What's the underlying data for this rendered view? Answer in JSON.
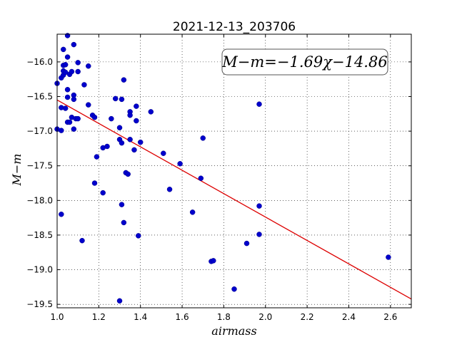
{
  "chart_data": {
    "type": "scatter",
    "title": "2021-12-13_203706",
    "xlabel": "airmass",
    "ylabel": "M−m",
    "xlim": [
      1.0,
      2.7
    ],
    "ylim": [
      -19.55,
      -15.6
    ],
    "x_ticks": [
      "1.0",
      "1.2",
      "1.4",
      "1.6",
      "1.8",
      "2.0",
      "2.2",
      "2.4",
      "2.6"
    ],
    "y_ticks": [
      "−16.0",
      "−16.5",
      "−17.0",
      "−17.5",
      "−18.0",
      "−18.5",
      "−19.0",
      "−19.5"
    ],
    "grid": true,
    "annotation": "M−m=−1.69χ−14.86",
    "fit": {
      "slope": -1.69,
      "intercept": -14.86,
      "color": "#dd0000"
    },
    "point_color": "#0000cc",
    "points": [
      [
        1.0,
        -16.31
      ],
      [
        1.0,
        -16.97
      ],
      [
        1.02,
        -16.23
      ],
      [
        1.02,
        -16.66
      ],
      [
        1.02,
        -16.99
      ],
      [
        1.02,
        -18.2
      ],
      [
        1.03,
        -15.82
      ],
      [
        1.03,
        -16.05
      ],
      [
        1.03,
        -16.13
      ],
      [
        1.03,
        -16.19
      ],
      [
        1.04,
        -16.04
      ],
      [
        1.04,
        -16.15
      ],
      [
        1.04,
        -16.67
      ],
      [
        1.05,
        -15.62
      ],
      [
        1.05,
        -15.93
      ],
      [
        1.05,
        -16.4
      ],
      [
        1.05,
        -16.51
      ],
      [
        1.05,
        -16.87
      ],
      [
        1.06,
        -16.18
      ],
      [
        1.06,
        -16.87
      ],
      [
        1.07,
        -16.14
      ],
      [
        1.07,
        -16.8
      ],
      [
        1.08,
        -15.75
      ],
      [
        1.08,
        -16.48
      ],
      [
        1.08,
        -16.54
      ],
      [
        1.08,
        -16.97
      ],
      [
        1.09,
        -16.82
      ],
      [
        1.1,
        -16.01
      ],
      [
        1.1,
        -16.14
      ],
      [
        1.1,
        -16.82
      ],
      [
        1.12,
        -18.58
      ],
      [
        1.13,
        -16.33
      ],
      [
        1.15,
        -16.06
      ],
      [
        1.15,
        -16.62
      ],
      [
        1.17,
        -16.77
      ],
      [
        1.18,
        -16.8
      ],
      [
        1.18,
        -17.75
      ],
      [
        1.19,
        -17.37
      ],
      [
        1.22,
        -17.24
      ],
      [
        1.22,
        -17.89
      ],
      [
        1.24,
        -17.22
      ],
      [
        1.26,
        -16.82
      ],
      [
        1.28,
        -16.53
      ],
      [
        1.3,
        -16.95
      ],
      [
        1.3,
        -17.12
      ],
      [
        1.3,
        -19.45
      ],
      [
        1.31,
        -16.54
      ],
      [
        1.31,
        -17.17
      ],
      [
        1.31,
        -18.06
      ],
      [
        1.32,
        -16.26
      ],
      [
        1.32,
        -18.32
      ],
      [
        1.33,
        -17.6
      ],
      [
        1.34,
        -17.62
      ],
      [
        1.35,
        -16.72
      ],
      [
        1.35,
        -16.77
      ],
      [
        1.35,
        -17.12
      ],
      [
        1.37,
        -17.27
      ],
      [
        1.38,
        -16.64
      ],
      [
        1.38,
        -16.85
      ],
      [
        1.39,
        -18.51
      ],
      [
        1.4,
        -17.16
      ],
      [
        1.45,
        -16.72
      ],
      [
        1.51,
        -17.32
      ],
      [
        1.54,
        -17.84
      ],
      [
        1.59,
        -17.47
      ],
      [
        1.65,
        -18.17
      ],
      [
        1.69,
        -17.68
      ],
      [
        1.7,
        -17.1
      ],
      [
        1.74,
        -18.88
      ],
      [
        1.75,
        -18.87
      ],
      [
        1.85,
        -19.28
      ],
      [
        1.91,
        -18.62
      ],
      [
        1.97,
        -16.61
      ],
      [
        1.97,
        -18.08
      ],
      [
        1.97,
        -18.49
      ],
      [
        2.59,
        -18.82
      ]
    ]
  }
}
